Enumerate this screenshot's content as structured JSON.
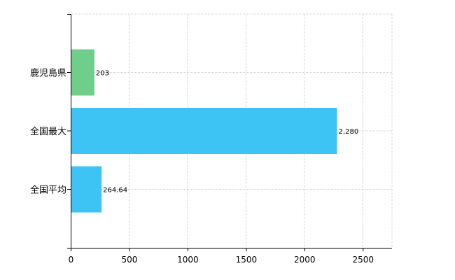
{
  "chart_data": {
    "type": "bar",
    "orientation": "horizontal",
    "categories": [
      "鹿児島県",
      "全国最大",
      "全国平均"
    ],
    "values": [
      203,
      2280,
      264.64
    ],
    "data_labels": [
      "203",
      "2,280",
      "264.64"
    ],
    "colors": [
      "#6fcf8a",
      "#3dc4f5",
      "#3dc4f5"
    ],
    "xlim": [
      0,
      2750
    ],
    "x_ticks": [
      0,
      500,
      1000,
      1500,
      2000,
      2500
    ],
    "x_tick_labels": [
      "0",
      "500",
      "1000",
      "1500",
      "2000",
      "2500"
    ],
    "grid": true,
    "gridline_color": "#d0d0d0",
    "title": "",
    "xlabel": "",
    "ylabel": ""
  }
}
